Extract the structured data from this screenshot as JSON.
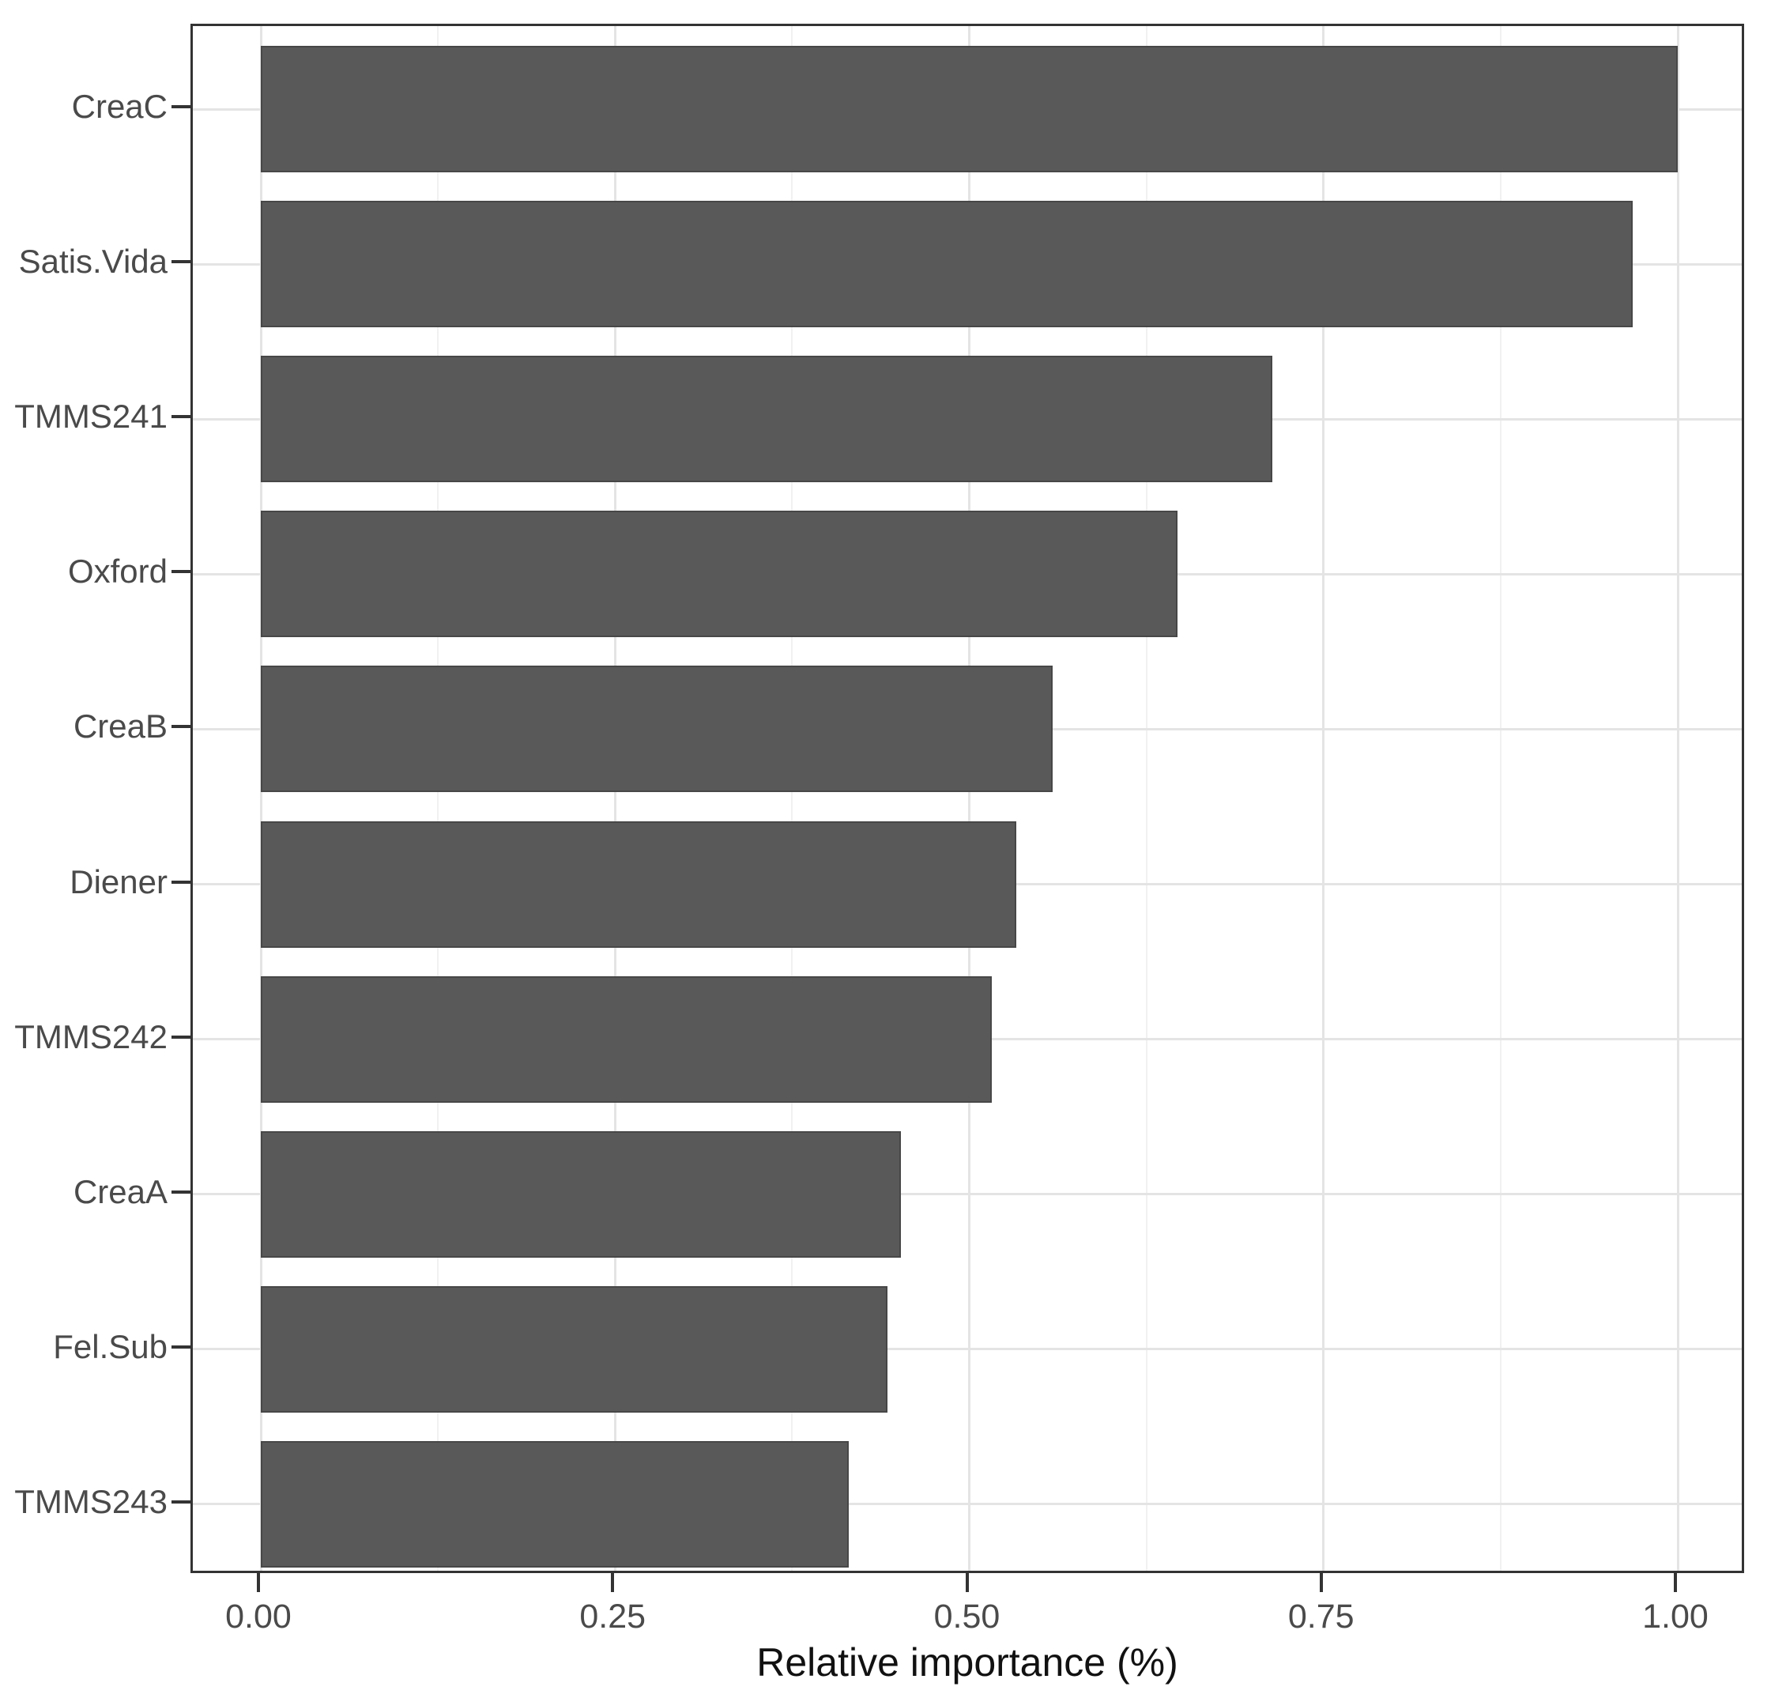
{
  "chart_data": {
    "type": "bar",
    "orientation": "horizontal",
    "title": "",
    "xlabel": "Relative importance (%)",
    "ylabel": "",
    "categories": [
      "CreaC",
      "Satis.Vida",
      "TMMS241",
      "Oxford",
      "CreaB",
      "Diener",
      "TMMS242",
      "CreaA",
      "Fel.Sub",
      "TMMS243"
    ],
    "values": [
      1.0,
      0.968,
      0.714,
      0.647,
      0.559,
      0.533,
      0.516,
      0.452,
      0.442,
      0.415
    ],
    "x_ticks": [
      {
        "value": 0.0,
        "label": "0.00"
      },
      {
        "value": 0.25,
        "label": "0.25"
      },
      {
        "value": 0.5,
        "label": "0.50"
      },
      {
        "value": 0.75,
        "label": "0.75"
      },
      {
        "value": 1.0,
        "label": "1.00"
      }
    ],
    "x_minor_gridlines": [
      0.125,
      0.375,
      0.625,
      0.875
    ],
    "xlim": [
      0,
      1.0
    ],
    "grid": true,
    "legend": "none",
    "colors": {
      "bar_fill": "#595959",
      "bar_border": "#474747",
      "grid_major": "#e4e4e4",
      "grid_minor": "#f1f1f1",
      "panel_border": "#333333",
      "tick_mark": "#333333",
      "tick_label": "#4a4a4a",
      "axis_title": "#111111"
    }
  }
}
